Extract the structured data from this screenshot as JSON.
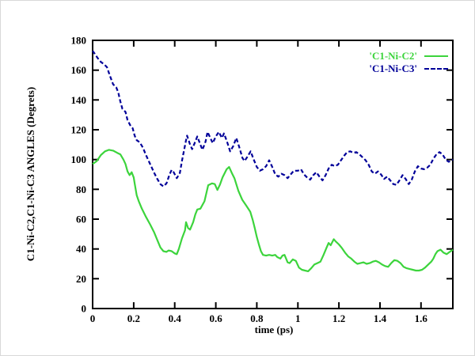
{
  "chart_data": {
    "type": "line",
    "title": "",
    "xlabel": "time (ps)",
    "ylabel": "C1-Ni-C2,C1-Ni-C3 ANGLES (Degrets)",
    "xlim": [
      0,
      1.755
    ],
    "ylim": [
      0,
      180
    ],
    "xticks": [
      0,
      0.2,
      0.4,
      0.6,
      0.8,
      1,
      1.2,
      1.4,
      1.6
    ],
    "xtick_labels": [
      "0",
      "0.2",
      "0.4",
      "0.6",
      "0.8",
      "1",
      "1.2",
      "1.4",
      "1.6"
    ],
    "yticks": [
      0,
      20,
      40,
      60,
      80,
      100,
      120,
      140,
      160,
      180
    ],
    "ytick_labels": [
      "0",
      "20",
      "40",
      "60",
      "80",
      "100",
      "120",
      "140",
      "160",
      "180"
    ],
    "grid": false,
    "legend_position": "top-right-inside",
    "axis_color": "#000000",
    "series": [
      {
        "id": "c1-ni-c2",
        "name": "'C1-Ni-C2'",
        "color": "#3cd43c",
        "style": "solid",
        "points": [
          [
            0,
            97
          ],
          [
            0.02,
            99
          ],
          [
            0.04,
            103
          ],
          [
            0.06,
            105.5
          ],
          [
            0.08,
            106.5
          ],
          [
            0.1,
            106
          ],
          [
            0.12,
            104.5
          ],
          [
            0.135,
            103.5
          ],
          [
            0.15,
            100
          ],
          [
            0.16,
            97
          ],
          [
            0.17,
            92
          ],
          [
            0.18,
            89.5
          ],
          [
            0.19,
            91.5
          ],
          [
            0.2,
            88
          ],
          [
            0.205,
            84
          ],
          [
            0.215,
            76
          ],
          [
            0.225,
            72
          ],
          [
            0.24,
            67
          ],
          [
            0.26,
            61.5
          ],
          [
            0.28,
            56.5
          ],
          [
            0.3,
            51
          ],
          [
            0.315,
            46
          ],
          [
            0.33,
            41
          ],
          [
            0.345,
            38.5
          ],
          [
            0.36,
            38
          ],
          [
            0.37,
            39
          ],
          [
            0.385,
            38.5
          ],
          [
            0.4,
            37
          ],
          [
            0.41,
            36.5
          ],
          [
            0.42,
            40
          ],
          [
            0.435,
            47
          ],
          [
            0.45,
            52.5
          ],
          [
            0.465,
            54
          ],
          [
            0.475,
            53
          ],
          [
            0.455,
            58
          ],
          [
            0.49,
            58
          ],
          [
            0.5,
            63
          ],
          [
            0.51,
            66.5
          ],
          [
            0.525,
            67
          ],
          [
            0.545,
            72
          ],
          [
            0.563,
            82.8
          ],
          [
            0.582,
            84
          ],
          [
            0.595,
            83.5
          ],
          [
            0.608,
            79.6
          ],
          [
            0.62,
            83
          ],
          [
            0.633,
            88
          ],
          [
            0.653,
            93.5
          ],
          [
            0.665,
            95
          ],
          [
            0.678,
            91
          ],
          [
            0.691,
            87.5
          ],
          [
            0.71,
            79
          ],
          [
            0.729,
            73
          ],
          [
            0.749,
            69
          ],
          [
            0.768,
            65
          ],
          [
            0.78,
            59.5
          ],
          [
            0.79,
            54
          ],
          [
            0.8,
            48
          ],
          [
            0.81,
            43
          ],
          [
            0.82,
            38.5
          ],
          [
            0.83,
            36
          ],
          [
            0.845,
            35.5
          ],
          [
            0.86,
            36
          ],
          [
            0.875,
            35.5
          ],
          [
            0.89,
            36
          ],
          [
            0.9,
            34.5
          ],
          [
            0.915,
            33.5
          ],
          [
            0.925,
            35.5
          ],
          [
            0.935,
            36
          ],
          [
            0.95,
            31
          ],
          [
            0.96,
            30.5
          ],
          [
            0.975,
            33
          ],
          [
            0.99,
            32
          ],
          [
            1.005,
            27.5
          ],
          [
            1.02,
            26
          ],
          [
            1.035,
            25.5
          ],
          [
            1.05,
            25
          ],
          [
            1.065,
            27
          ],
          [
            1.08,
            29.5
          ],
          [
            1.095,
            30.5
          ],
          [
            1.11,
            31.5
          ],
          [
            1.125,
            36
          ],
          [
            1.14,
            41
          ],
          [
            1.15,
            44
          ],
          [
            1.16,
            42.5
          ],
          [
            1.175,
            46.5
          ],
          [
            1.185,
            45
          ],
          [
            1.2,
            43
          ],
          [
            1.215,
            40.5
          ],
          [
            1.23,
            37.5
          ],
          [
            1.245,
            35
          ],
          [
            1.26,
            33.5
          ],
          [
            1.275,
            31.5
          ],
          [
            1.29,
            30
          ],
          [
            1.305,
            30.5
          ],
          [
            1.32,
            31
          ],
          [
            1.335,
            30
          ],
          [
            1.35,
            30.5
          ],
          [
            1.365,
            31.5
          ],
          [
            1.38,
            32
          ],
          [
            1.395,
            31
          ],
          [
            1.41,
            29.5
          ],
          [
            1.425,
            28.5
          ],
          [
            1.44,
            28
          ],
          [
            1.455,
            30.5
          ],
          [
            1.47,
            32.5
          ],
          [
            1.485,
            32
          ],
          [
            1.5,
            30.5
          ],
          [
            1.515,
            28
          ],
          [
            1.53,
            27
          ],
          [
            1.545,
            26.5
          ],
          [
            1.56,
            26
          ],
          [
            1.575,
            25.5
          ],
          [
            1.59,
            25.5
          ],
          [
            1.605,
            26
          ],
          [
            1.62,
            27.5
          ],
          [
            1.635,
            29.5
          ],
          [
            1.65,
            31.5
          ],
          [
            1.66,
            33.5
          ],
          [
            1.67,
            36.5
          ],
          [
            1.68,
            38.5
          ],
          [
            1.695,
            39.5
          ],
          [
            1.71,
            37.5
          ],
          [
            1.725,
            36.5
          ],
          [
            1.74,
            38
          ],
          [
            1.755,
            39.5
          ]
        ]
      },
      {
        "id": "c1-ni-c3",
        "name": "'C1-Ni-C3'",
        "color": "#000099",
        "style": "dashed",
        "points": [
          [
            0,
            173
          ],
          [
            0.01,
            171
          ],
          [
            0.025,
            168
          ],
          [
            0.04,
            165.5
          ],
          [
            0.055,
            164
          ],
          [
            0.07,
            162
          ],
          [
            0.085,
            156
          ],
          [
            0.1,
            150.5
          ],
          [
            0.115,
            148.5
          ],
          [
            0.125,
            145
          ],
          [
            0.135,
            139
          ],
          [
            0.145,
            134
          ],
          [
            0.16,
            132
          ],
          [
            0.17,
            126.5
          ],
          [
            0.185,
            122.5
          ],
          [
            0.195,
            121
          ],
          [
            0.205,
            116
          ],
          [
            0.215,
            113
          ],
          [
            0.23,
            111.5
          ],
          [
            0.245,
            108
          ],
          [
            0.26,
            103
          ],
          [
            0.27,
            100
          ],
          [
            0.285,
            95.5
          ],
          [
            0.3,
            91
          ],
          [
            0.315,
            87
          ],
          [
            0.33,
            83.5
          ],
          [
            0.345,
            82
          ],
          [
            0.36,
            84
          ],
          [
            0.375,
            90
          ],
          [
            0.385,
            93
          ],
          [
            0.395,
            91.5
          ],
          [
            0.41,
            87.5
          ],
          [
            0.425,
            91
          ],
          [
            0.435,
            99
          ],
          [
            0.445,
            106
          ],
          [
            0.455,
            113
          ],
          [
            0.46,
            116
          ],
          [
            0.475,
            110
          ],
          [
            0.485,
            107
          ],
          [
            0.5,
            112
          ],
          [
            0.51,
            115.5
          ],
          [
            0.525,
            110
          ],
          [
            0.535,
            106.5
          ],
          [
            0.55,
            112
          ],
          [
            0.56,
            118.5
          ],
          [
            0.575,
            114
          ],
          [
            0.585,
            111
          ],
          [
            0.6,
            115.5
          ],
          [
            0.615,
            118.5
          ],
          [
            0.63,
            114.5
          ],
          [
            0.64,
            117.5
          ],
          [
            0.655,
            112
          ],
          [
            0.67,
            105.5
          ],
          [
            0.685,
            109
          ],
          [
            0.7,
            114.5
          ],
          [
            0.715,
            108
          ],
          [
            0.73,
            101
          ],
          [
            0.74,
            99
          ],
          [
            0.755,
            102
          ],
          [
            0.77,
            105.5
          ],
          [
            0.785,
            100
          ],
          [
            0.8,
            95
          ],
          [
            0.815,
            92.5
          ],
          [
            0.83,
            93.5
          ],
          [
            0.845,
            95.5
          ],
          [
            0.86,
            99.5
          ],
          [
            0.875,
            95
          ],
          [
            0.89,
            90
          ],
          [
            0.905,
            88.5
          ],
          [
            0.92,
            90.5
          ],
          [
            0.935,
            89.5
          ],
          [
            0.95,
            87.5
          ],
          [
            0.965,
            90
          ],
          [
            0.98,
            92.5
          ],
          [
            1.0,
            92.5
          ],
          [
            1.015,
            93.5
          ],
          [
            1.03,
            90
          ],
          [
            1.045,
            88
          ],
          [
            1.06,
            86.5
          ],
          [
            1.075,
            89.5
          ],
          [
            1.09,
            91.5
          ],
          [
            1.105,
            88.5
          ],
          [
            1.12,
            86
          ],
          [
            1.135,
            89.5
          ],
          [
            1.15,
            94
          ],
          [
            1.165,
            96.5
          ],
          [
            1.18,
            95.5
          ],
          [
            1.195,
            96.5
          ],
          [
            1.21,
            99.5
          ],
          [
            1.225,
            102.5
          ],
          [
            1.24,
            105
          ],
          [
            1.255,
            105.5
          ],
          [
            1.27,
            104.5
          ],
          [
            1.285,
            105
          ],
          [
            1.3,
            103.5
          ],
          [
            1.315,
            101.5
          ],
          [
            1.33,
            99.5
          ],
          [
            1.345,
            96.5
          ],
          [
            1.36,
            92
          ],
          [
            1.375,
            90.5
          ],
          [
            1.39,
            92
          ],
          [
            1.405,
            90
          ],
          [
            1.42,
            87
          ],
          [
            1.435,
            88.5
          ],
          [
            1.45,
            86
          ],
          [
            1.465,
            83.5
          ],
          [
            1.48,
            83
          ],
          [
            1.495,
            86
          ],
          [
            1.51,
            89.5
          ],
          [
            1.525,
            87
          ],
          [
            1.54,
            83.5
          ],
          [
            1.555,
            86.5
          ],
          [
            1.57,
            92
          ],
          [
            1.585,
            95.5
          ],
          [
            1.6,
            94
          ],
          [
            1.615,
            93.5
          ],
          [
            1.63,
            94.5
          ],
          [
            1.645,
            96.5
          ],
          [
            1.66,
            100.5
          ],
          [
            1.675,
            103.5
          ],
          [
            1.69,
            105
          ],
          [
            1.705,
            103.5
          ],
          [
            1.72,
            100
          ],
          [
            1.735,
            98.5
          ],
          [
            1.755,
            100
          ]
        ]
      }
    ]
  }
}
